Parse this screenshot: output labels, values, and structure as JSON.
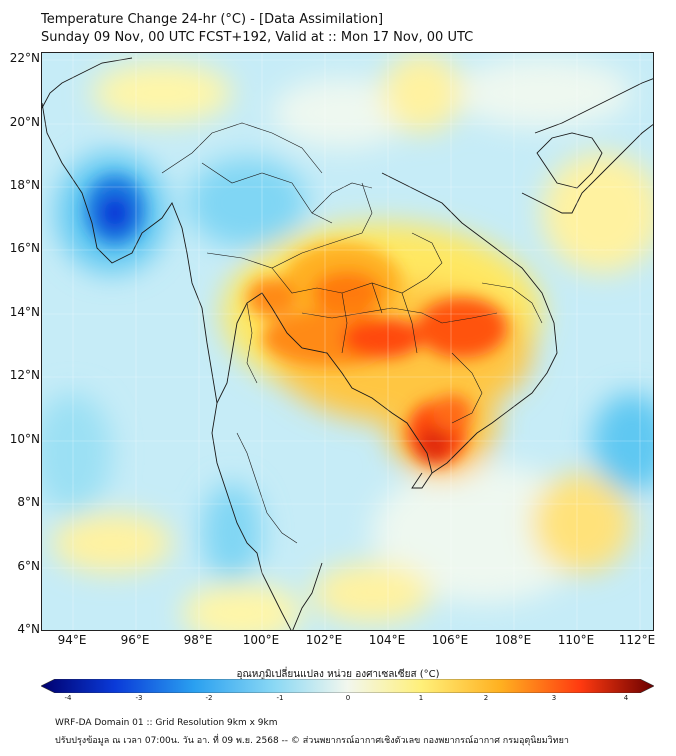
{
  "title_line1": "Temperature Change 24-hr (°C) - [Data Assimilation]",
  "title_line2": "Sunday 09 Nov, 00 UTC FCST+192, Valid at :: Mon 17 Nov, 00 UTC",
  "map": {
    "lat_labels": [
      "22°N",
      "20°N",
      "18°N",
      "16°N",
      "14°N",
      "12°N",
      "10°N",
      "8°N",
      "6°N",
      "4°N"
    ],
    "lon_labels": [
      "94°E",
      "96°E",
      "98°E",
      "100°E",
      "102°E",
      "104°E",
      "106°E",
      "108°E",
      "110°E",
      "112°E"
    ],
    "extent": {
      "lon_min": 93,
      "lon_max": 112.5,
      "lat_min": 4,
      "lat_max": 22.2
    },
    "field": "24-hr temperature change",
    "colors": {
      "neg4": "#000080",
      "neg3": "#0a3ad8",
      "neg2": "#2aa0f0",
      "neg1": "#8ad8f4",
      "zero": "#f2f7ee",
      "pos1": "#fff07a",
      "pos2": "#ffb020",
      "pos3": "#ff4a10",
      "pos4": "#7a0000"
    },
    "warm_core": "Thailand–Cambodia interior, peak near 105.5°E 10.2°N",
    "cold_core": "Gulf of Martaban near 95.5°E 17°N"
  },
  "colorbar": {
    "label": "อุณหภูมิเปลี่ยนแปลง หน่วย องศาเซลเซียส (°C)",
    "ticks": [
      "-4",
      "-3",
      "-2",
      "-1",
      "0",
      "1",
      "2",
      "3",
      "4"
    ]
  },
  "footer_line1": "WRF-DA Domain 01 :: Grid Resolution 9km x 9km",
  "footer_line2": "ปรับปรุงข้อมูล ณ เวลา 07:00น. วัน อา. ที่ 09 พ.ย. 2568 -- © ส่วนพยากรณ์อากาศเชิงตัวเลข กองพยากรณ์อากาศ กรมอุตุนิยมวิทยา"
}
